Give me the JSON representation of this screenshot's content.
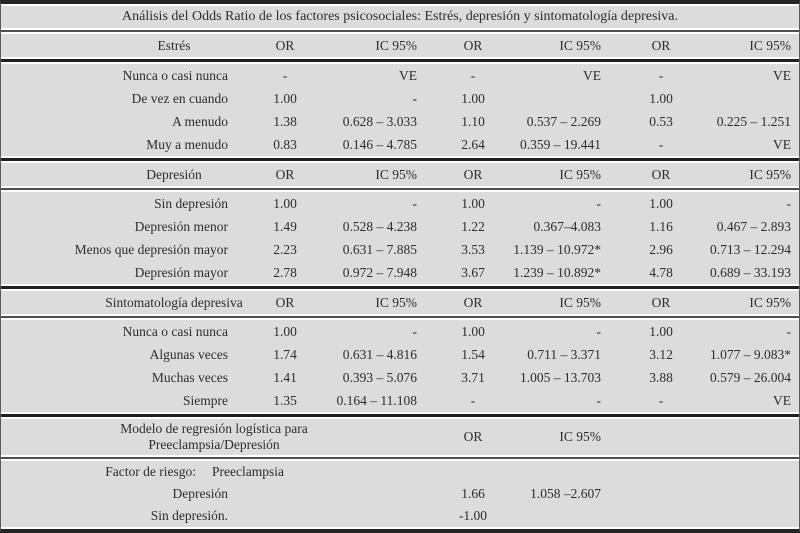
{
  "colors": {
    "row_bg": "#dcdcdc",
    "rule_thick": "#1f1f1f",
    "rule_thin": "#4f4f4f",
    "text": "#2d2d2d"
  },
  "title": "Análisis del Odds Ratio de los factores psicosociales: Estrés, depresión y sintomatología depresiva.",
  "col_headers": {
    "or": "OR",
    "ic": "IC 95%"
  },
  "sections": [
    {
      "header": "Estrés",
      "rows": [
        {
          "label": "Nunca o casi nunca",
          "cells": [
            "-",
            "VE",
            "-",
            "VE",
            "-",
            "VE"
          ]
        },
        {
          "label": "De vez en cuando",
          "cells": [
            "1.00",
            "-",
            "1.00",
            "",
            "1.00",
            ""
          ]
        },
        {
          "label": "A menudo",
          "cells": [
            "1.38",
            "0.628 – 3.033",
            "1.10",
            "0.537 – 2.269",
            "0.53",
            "0.225 – 1.251"
          ]
        },
        {
          "label": "Muy a menudo",
          "cells": [
            "0.83",
            "0.146 – 4.785",
            "2.64",
            "0.359 – 19.441",
            "-",
            "VE"
          ]
        }
      ]
    },
    {
      "header": "Depresión",
      "rows": [
        {
          "label": "Sin depresión",
          "cells": [
            "1.00",
            "-",
            "1.00",
            "-",
            "1.00",
            "-"
          ]
        },
        {
          "label": "Depresión menor",
          "cells": [
            "1.49",
            "0.528 – 4.238",
            "1.22",
            "0.367–4.083",
            "1.16",
            "0.467 – 2.893"
          ]
        },
        {
          "label": "Menos que depresión mayor",
          "cells": [
            "2.23",
            "0.631 – 7.885",
            "3.53",
            "1.139 – 10.972*",
            "2.96",
            "0.713 – 12.294"
          ]
        },
        {
          "label": "Depresión mayor",
          "cells": [
            "2.78",
            "0.972 – 7.948",
            "3.67",
            "1.239 – 10.892*",
            "4.78",
            "0.689 – 33.193"
          ]
        }
      ]
    },
    {
      "header": "Sintomatología depresiva",
      "rows": [
        {
          "label": "Nunca o casi nunca",
          "cells": [
            "1.00",
            "-",
            "1.00",
            "-",
            "1.00",
            "-"
          ]
        },
        {
          "label": "Algunas veces",
          "cells": [
            "1.74",
            "0.631 – 4.816",
            "1.54",
            "0.711 – 3.371",
            "3.12",
            "1.077 – 9.083*"
          ]
        },
        {
          "label": "Muchas veces",
          "cells": [
            "1.41",
            "0.393 – 5.076",
            "3.71",
            "1.005 – 13.703",
            "3.88",
            "0.579 – 26.004"
          ]
        },
        {
          "label": "Siempre",
          "cells": [
            "1.35",
            "0.164 – 11.108",
            "-",
            "-",
            "-",
            "VE"
          ]
        }
      ]
    }
  ],
  "regression": {
    "title_line1": "Modelo de regresión logística para",
    "title_line2": "Preeclampsia/Depresión",
    "or_header": "OR",
    "ic_header": "IC 95%",
    "factor_label": "Factor de riesgo:",
    "factor_value": "Preeclampsia",
    "rows": [
      {
        "label": "Depresión",
        "or": "1.66",
        "ic": "1.058 –2.607"
      },
      {
        "label": "Sin depresión.",
        "or": "-1.00",
        "ic": ""
      }
    ]
  }
}
